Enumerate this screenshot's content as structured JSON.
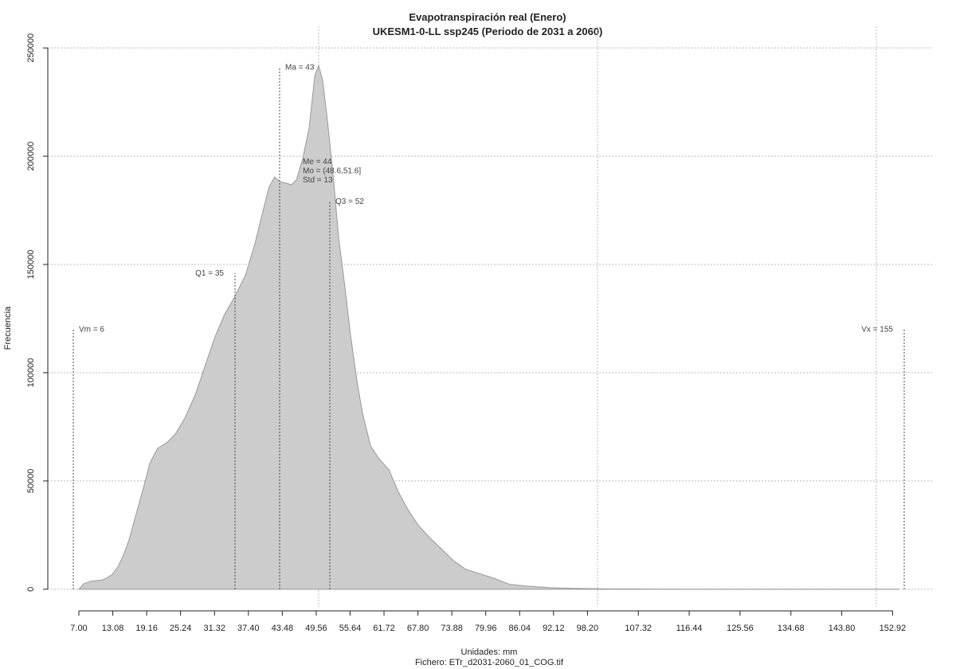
{
  "chart_data": {
    "type": "area",
    "title": "Evapotranspiración real (Enero)",
    "subtitle": "UKESM1-0-LL ssp245 (Periodo de 2031 a 2060)",
    "x_label": "Unidades: mm",
    "x_label2": "Fichero: ETr_d2031-2060_01_COG.tif",
    "y_label": "Frecuencia",
    "color": "#cccccc",
    "line_color": "#999999",
    "x": [
      7,
      7.9,
      9.3,
      11.4,
      12.9,
      14,
      15,
      16,
      17.1,
      18.6,
      19.7,
      21.1,
      22.9,
      24.3,
      26,
      27.9,
      29.7,
      31.4,
      33.1,
      35,
      36.9,
      38.6,
      40,
      41.1,
      42.1,
      43.1,
      44.3,
      45.1,
      46,
      47.1,
      48.3,
      49.3,
      50,
      50.7,
      51.4,
      52.6,
      53.6,
      54.7,
      55.7,
      56.9,
      57.9,
      59.3,
      60.7,
      62.6,
      64.3,
      66,
      67.9,
      70,
      72.1,
      74.3,
      76.4,
      78.6,
      81.4,
      84.3,
      87.1,
      91.4,
      95.7,
      101.4,
      114.3,
      135.7,
      154
    ],
    "values": [
      0,
      2600,
      3700,
      4400,
      6600,
      10300,
      15800,
      22800,
      33100,
      47000,
      58100,
      65000,
      68000,
      71700,
      79000,
      90000,
      103700,
      116500,
      126800,
      135300,
      145200,
      159900,
      174600,
      185700,
      190400,
      188200,
      187500,
      186800,
      189000,
      198500,
      213200,
      237100,
      241900,
      235300,
      220600,
      191200,
      161800,
      139700,
      117600,
      95600,
      80900,
      66200,
      60700,
      55100,
      44900,
      36800,
      29400,
      23500,
      18400,
      12900,
      9200,
      7400,
      5100,
      2200,
      1500,
      700,
      400,
      150,
      50,
      20,
      0
    ],
    "xlim": [
      1.43,
      160
    ],
    "ylim": [
      -10000,
      260000
    ],
    "xticks": [
      {
        "value": 7,
        "label": "7.00"
      },
      13.08,
      19.16,
      25.24,
      31.32,
      {
        "value": 37.4,
        "label": "37.40"
      },
      43.48,
      49.56,
      55.64,
      61.72,
      {
        "value": 67.8,
        "label": "67.80"
      },
      73.88,
      79.96,
      86.04,
      92.12,
      {
        "value": 98.2,
        "label": "98.20"
      },
      107.32,
      116.44,
      125.56,
      134.68,
      {
        "value": 143.8,
        "label": "143.80"
      },
      152.92
    ],
    "yticks": [
      0,
      50000,
      100000,
      150000,
      200000,
      250000
    ],
    "xgrid": [
      50,
      100,
      150
    ],
    "grid": true,
    "markers": [
      {
        "label": "Vm = 6",
        "x": 6,
        "y": 120000
      },
      {
        "label": "Q1 = 35",
        "x": 35,
        "y": 146000
      },
      {
        "label": "Ma = 43",
        "x": 43,
        "y": 241000
      },
      {
        "label": "Q3 = 52",
        "x": 52,
        "y": 179000
      },
      {
        "label": "Vx = 155",
        "x": 155,
        "y": 120000
      }
    ],
    "stats": [
      "Me = 44",
      "Mo = (48.6,51.6]",
      "Std = 13"
    ]
  }
}
